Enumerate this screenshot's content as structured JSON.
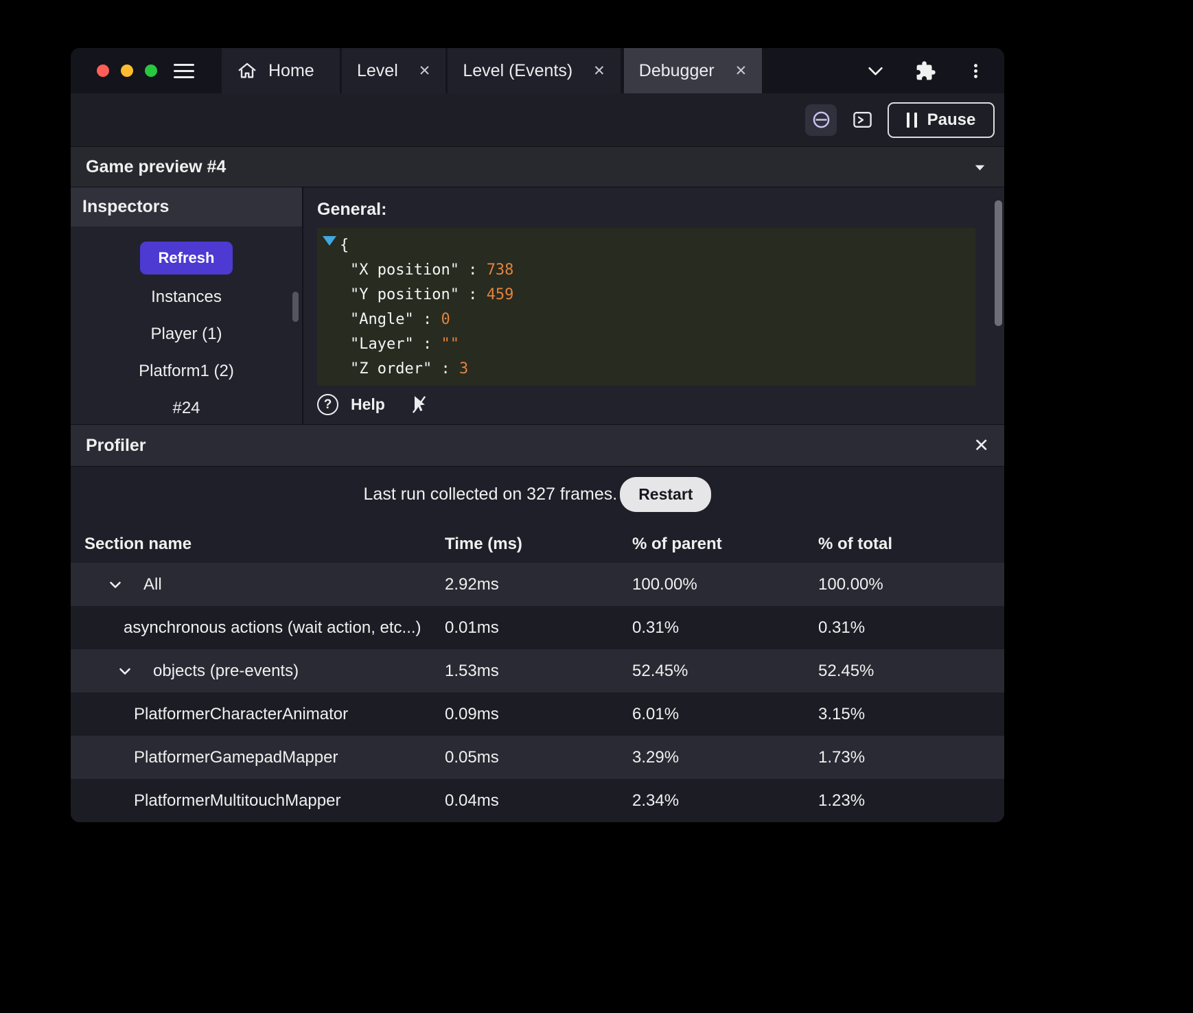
{
  "titlebar": {
    "tabs": [
      {
        "label": "Home",
        "icon": "home",
        "closable": false,
        "active": false
      },
      {
        "label": "Level",
        "icon": null,
        "closable": true,
        "active": false
      },
      {
        "label": "Level (Events)",
        "icon": null,
        "closable": true,
        "active": false
      },
      {
        "label": "Debugger",
        "icon": null,
        "closable": true,
        "active": true
      }
    ]
  },
  "toolbar": {
    "pause_label": "Pause"
  },
  "preview": {
    "title": "Game preview #4"
  },
  "inspectors": {
    "title": "Inspectors",
    "refresh_label": "Refresh",
    "items": [
      "Instances",
      "Player (1)",
      "Platform1 (2)",
      "#24"
    ]
  },
  "general": {
    "title": "General:",
    "open_brace": "{",
    "separator": " : ",
    "properties": [
      {
        "key": "\"X position\"",
        "value": "738"
      },
      {
        "key": "\"Y position\"",
        "value": "459"
      },
      {
        "key": "\"Angle\"",
        "value": "0"
      },
      {
        "key": "\"Layer\"",
        "value": "\"\""
      },
      {
        "key": "\"Z order\"",
        "value": "3"
      }
    ],
    "help_label": "Help"
  },
  "profiler": {
    "title": "Profiler",
    "status_text": "Last run collected on 327 frames.",
    "restart_label": "Restart",
    "columns": [
      "Section name",
      "Time (ms)",
      "% of parent",
      "% of total"
    ],
    "rows": [
      {
        "name": "All",
        "time": "2.92ms",
        "percent_parent": "100.00%",
        "percent_total": "100.00%",
        "depth": 0,
        "expandable": true
      },
      {
        "name": "asynchronous actions (wait action, etc...)",
        "time": "0.01ms",
        "percent_parent": "0.31%",
        "percent_total": "0.31%",
        "depth": 1,
        "expandable": false
      },
      {
        "name": "objects (pre-events)",
        "time": "1.53ms",
        "percent_parent": "52.45%",
        "percent_total": "52.45%",
        "depth": 1,
        "expandable": true
      },
      {
        "name": "PlatformerCharacterAnimator",
        "time": "0.09ms",
        "percent_parent": "6.01%",
        "percent_total": "3.15%",
        "depth": 2,
        "expandable": false
      },
      {
        "name": "PlatformerGamepadMapper",
        "time": "0.05ms",
        "percent_parent": "3.29%",
        "percent_total": "1.73%",
        "depth": 2,
        "expandable": false
      },
      {
        "name": "PlatformerMultitouchMapper",
        "time": "0.04ms",
        "percent_parent": "2.34%",
        "percent_total": "1.23%",
        "depth": 2,
        "expandable": false
      }
    ]
  },
  "colors": {
    "accent_purple": "#4c3ad2",
    "value_orange": "#e2823f",
    "caret_blue": "#41a8e1",
    "traffic_red": "#ff5f57",
    "traffic_yellow": "#febc2e",
    "traffic_green": "#28c840"
  }
}
